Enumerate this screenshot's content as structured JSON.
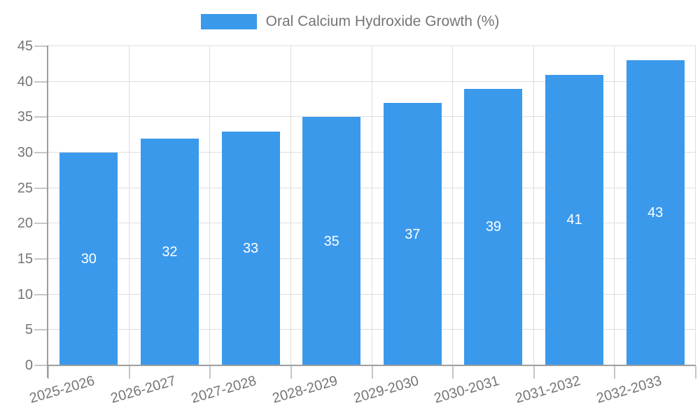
{
  "legend": {
    "label": "Oral Calcium Hydroxide Growth (%)"
  },
  "chart_data": {
    "type": "bar",
    "title": "",
    "series_name": "Oral Calcium Hydroxide Growth (%)",
    "categories": [
      "2025-2026",
      "2026-2027",
      "2027-2028",
      "2028-2029",
      "2029-2030",
      "2030-2031",
      "2031-2032",
      "2032-2033"
    ],
    "values": [
      30,
      32,
      33,
      35,
      37,
      39,
      41,
      43
    ],
    "value_labels_shown": true,
    "xlabel": "",
    "ylabel": "",
    "ylim": [
      0,
      45
    ],
    "ytick_step": 5,
    "yticks": [
      "0",
      "5",
      "10",
      "15",
      "20",
      "25",
      "30",
      "35",
      "40",
      "45"
    ],
    "grid": true,
    "legend_position": "top-center",
    "x_label_rotation_deg": -16
  },
  "colors": {
    "bar": "#3b99ec",
    "axis": "#9e9e9e",
    "grid": "#dedede",
    "tick": "#c6c6c6",
    "text": "#757575",
    "value_label": "#ffffff",
    "background": "#ffffff"
  }
}
